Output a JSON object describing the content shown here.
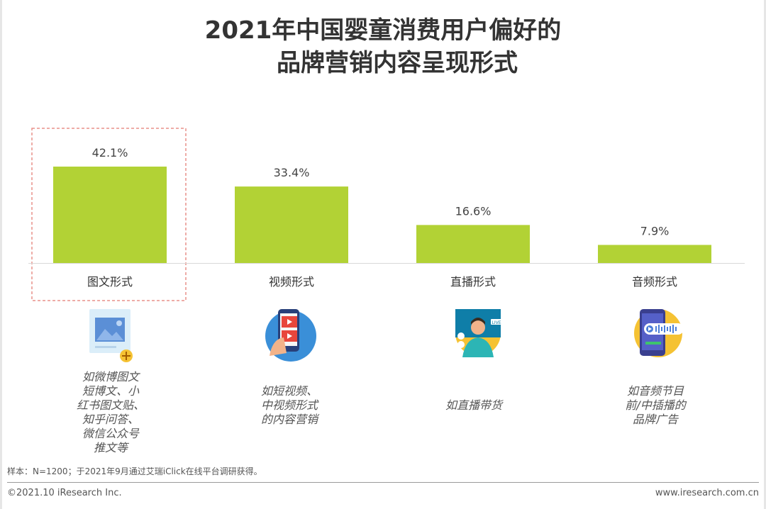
{
  "title": {
    "line1": "2021年中国婴童消费用户偏好的",
    "line2": "品牌营销内容呈现形式"
  },
  "chart_data": {
    "type": "bar",
    "title": "2021年中国婴童消费用户偏好的品牌营销内容呈现形式",
    "categories": [
      "图文形式",
      "视频形式",
      "直播形式",
      "音频形式"
    ],
    "values": [
      42.1,
      33.4,
      16.6,
      7.9
    ],
    "value_labels": [
      "42.1%",
      "33.4%",
      "16.6%",
      "7.9%"
    ],
    "unit": "%",
    "ylim": [
      0,
      50
    ],
    "highlighted_category": "图文形式",
    "bar_color": "#b2d235",
    "highlight_border_color": "#e8908a"
  },
  "descriptions": [
    "如微博图文\n短博文、小\n红书图文贴、\n知乎问答、\n微信公众号\n推文等",
    "如短视频、\n中视频形式\n的内容营销",
    "如直播带货",
    "如音频节目\n前/中插播的\n品牌广告"
  ],
  "icons": [
    "image-post-icon",
    "video-phone-icon",
    "live-stream-icon",
    "audio-phone-icon"
  ],
  "footer": {
    "note": "样本：N=1200；于2021年9月通过艾瑞iClick在线平台调研获得。",
    "copyright": "©2021.10 iResearch Inc.",
    "website": "www.iresearch.com.cn"
  }
}
